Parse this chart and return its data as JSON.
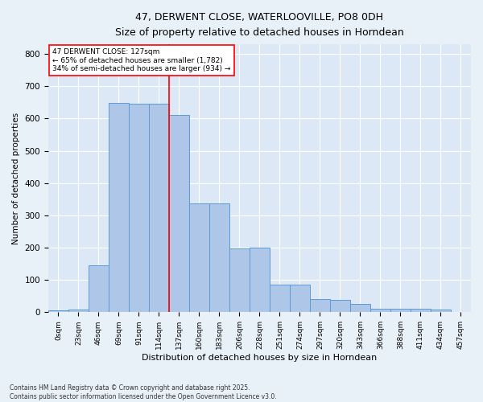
{
  "title_line1": "47, DERWENT CLOSE, WATERLOOVILLE, PO8 0DH",
  "title_line2": "Size of property relative to detached houses in Horndean",
  "xlabel": "Distribution of detached houses by size in Horndean",
  "ylabel": "Number of detached properties",
  "footnote": "Contains HM Land Registry data © Crown copyright and database right 2025.\nContains public sector information licensed under the Open Government Licence v3.0.",
  "bin_labels": [
    "0sqm",
    "23sqm",
    "46sqm",
    "69sqm",
    "91sqm",
    "114sqm",
    "137sqm",
    "160sqm",
    "183sqm",
    "206sqm",
    "228sqm",
    "251sqm",
    "274sqm",
    "297sqm",
    "320sqm",
    "343sqm",
    "366sqm",
    "388sqm",
    "411sqm",
    "434sqm",
    "457sqm"
  ],
  "bar_values": [
    5,
    8,
    145,
    648,
    647,
    645,
    612,
    337,
    337,
    198,
    200,
    85,
    85,
    40,
    38,
    25,
    10,
    12,
    12,
    8,
    2
  ],
  "bar_color": "#aec6e8",
  "bar_edge_color": "#5b9bd5",
  "highlight_bin_index": 5,
  "annotation_line1": "47 DERWENT CLOSE: 127sqm",
  "annotation_line2": "← 65% of detached houses are smaller (1,782)",
  "annotation_line3": "34% of semi-detached houses are larger (934) →",
  "bg_color": "#e8f0f8",
  "plot_bg_color": "#dce8f5",
  "ylim": [
    0,
    830
  ],
  "yticks": [
    0,
    100,
    200,
    300,
    400,
    500,
    600,
    700,
    800
  ]
}
